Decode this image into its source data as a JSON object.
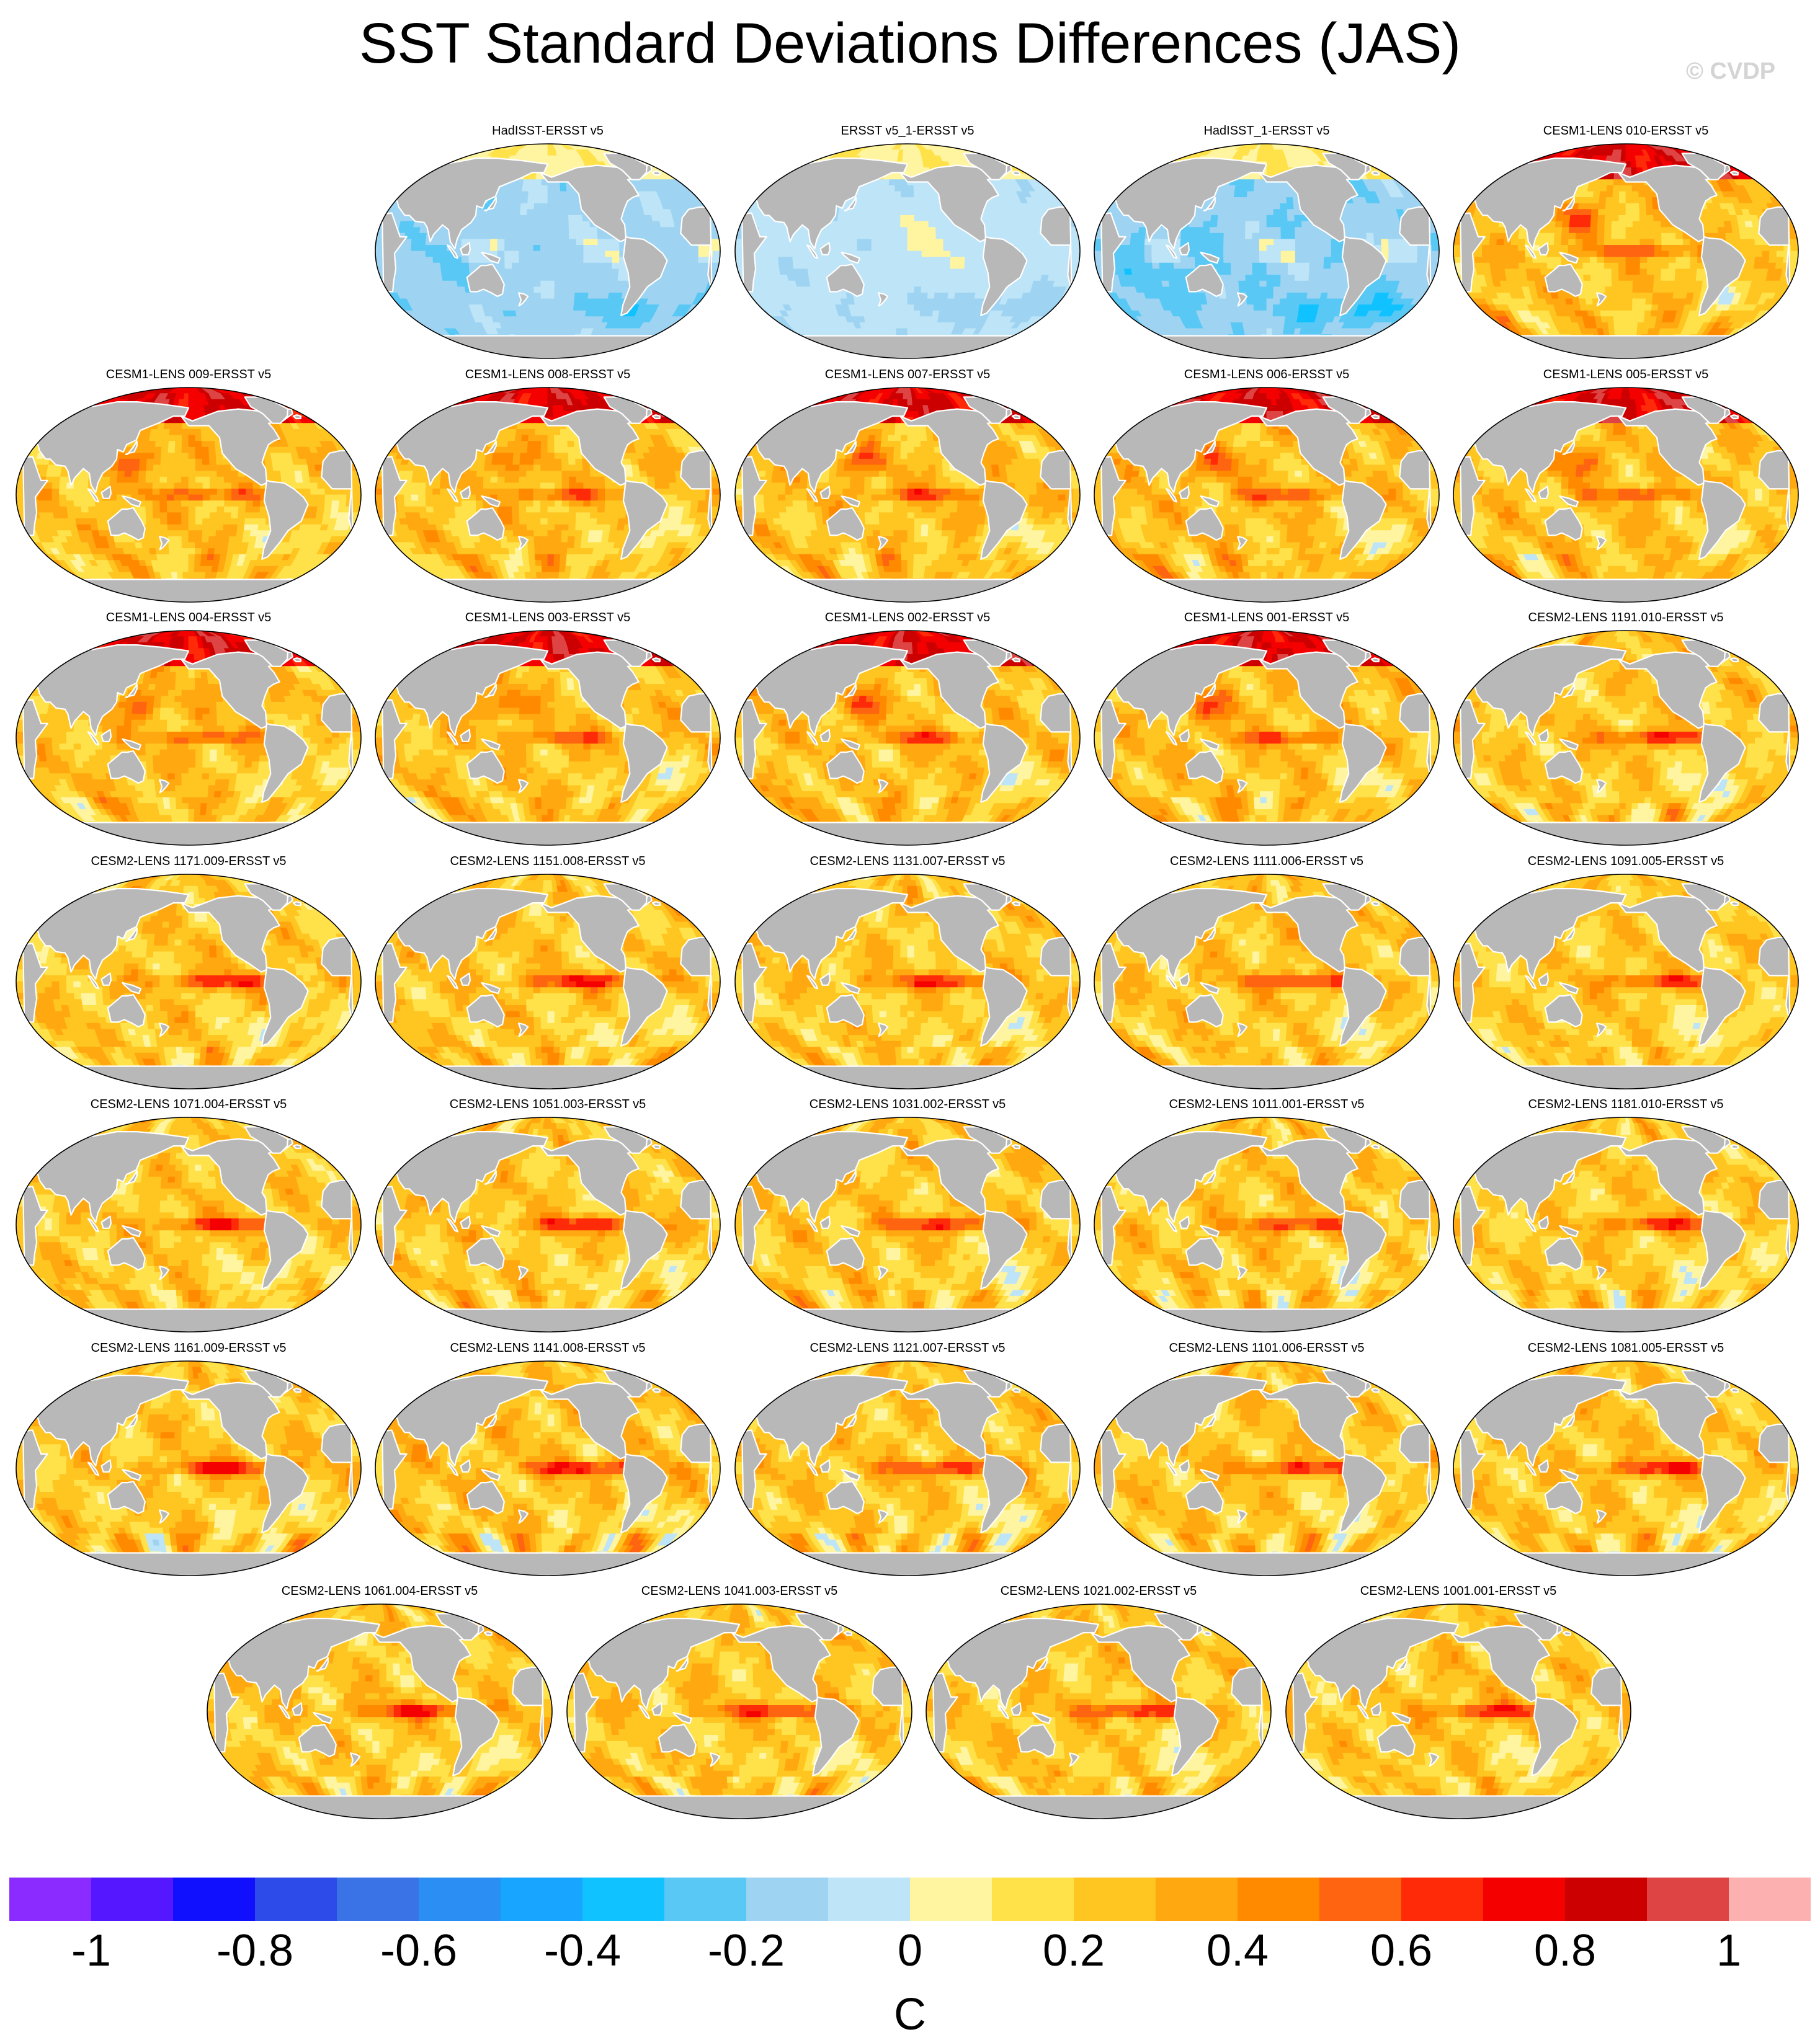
{
  "title": "SST Standard Deviations Differences (JAS)",
  "watermark": "© CVDP",
  "colorbar": {
    "unit": "C",
    "tick_labels": [
      "-1",
      "-0.8",
      "-0.6",
      "-0.4",
      "-0.2",
      "0",
      "0.2",
      "0.4",
      "0.6",
      "0.8",
      "1"
    ],
    "tick_values": [
      -1,
      -0.8,
      -0.6,
      -0.4,
      -0.2,
      0,
      0.2,
      0.4,
      0.6,
      0.8,
      1
    ],
    "min": -1.1,
    "max": 1.1,
    "step": 0.1,
    "colors": [
      "#8b2bff",
      "#5517ff",
      "#1010ff",
      "#2c4be8",
      "#3a73e6",
      "#2a8ef2",
      "#17a5ff",
      "#10c2ff",
      "#5ac8f5",
      "#9ed4f2",
      "#bee4f7",
      "#fff5a0",
      "#ffe14a",
      "#ffc520",
      "#ffa810",
      "#ff8a00",
      "#ff6410",
      "#ff2a08",
      "#f50000",
      "#cc0000",
      "#de4444",
      "#fcb0b0"
    ]
  },
  "chart_data": {
    "type": "heatmap",
    "title": "SST Standard Deviations Differences (JAS)",
    "colorbar_label": "C",
    "colorbar_range": [
      -1.1,
      1.1
    ],
    "panels": [
      {
        "title": "HadISST-ERSST v5",
        "style": "neg",
        "amp": 0.65
      },
      {
        "title": "ERSST v5_1-ERSST v5",
        "style": "neg2",
        "amp": 0.55
      },
      {
        "title": "HadISST_1-ERSST v5",
        "style": "neg",
        "amp": 0.8
      },
      {
        "title": "CESM1-LENS 010-ERSST v5",
        "style": "cesm1",
        "amp": 1.0
      },
      {
        "title": "CESM1-LENS 009-ERSST v5",
        "style": "cesm1",
        "amp": 1.0
      },
      {
        "title": "CESM1-LENS 008-ERSST v5",
        "style": "cesm1",
        "amp": 1.0
      },
      {
        "title": "CESM1-LENS 007-ERSST v5",
        "style": "cesm1",
        "amp": 1.0
      },
      {
        "title": "CESM1-LENS 006-ERSST v5",
        "style": "cesm1",
        "amp": 1.0
      },
      {
        "title": "CESM1-LENS 005-ERSST v5",
        "style": "cesm1",
        "amp": 1.0
      },
      {
        "title": "CESM1-LENS 004-ERSST v5",
        "style": "cesm1",
        "amp": 1.0
      },
      {
        "title": "CESM1-LENS 003-ERSST v5",
        "style": "cesm1",
        "amp": 1.0
      },
      {
        "title": "CESM1-LENS 002-ERSST v5",
        "style": "cesm1",
        "amp": 1.0
      },
      {
        "title": "CESM1-LENS 001-ERSST v5",
        "style": "cesm1",
        "amp": 1.0
      },
      {
        "title": "CESM2-LENS 1191.010-ERSST v5",
        "style": "cesm2",
        "amp": 1.0
      },
      {
        "title": "CESM2-LENS 1171.009-ERSST v5",
        "style": "cesm2",
        "amp": 1.0
      },
      {
        "title": "CESM2-LENS 1151.008-ERSST v5",
        "style": "cesm2",
        "amp": 1.0
      },
      {
        "title": "CESM2-LENS 1131.007-ERSST v5",
        "style": "cesm2",
        "amp": 1.0
      },
      {
        "title": "CESM2-LENS 1111.006-ERSST v5",
        "style": "cesm2",
        "amp": 1.0
      },
      {
        "title": "CESM2-LENS 1091.005-ERSST v5",
        "style": "cesm2",
        "amp": 0.95
      },
      {
        "title": "CESM2-LENS 1071.004-ERSST v5",
        "style": "cesm2",
        "amp": 1.0
      },
      {
        "title": "CESM2-LENS 1051.003-ERSST v5",
        "style": "cesm2",
        "amp": 1.0
      },
      {
        "title": "CESM2-LENS 1031.002-ERSST v5",
        "style": "cesm2",
        "amp": 1.0
      },
      {
        "title": "CESM2-LENS 1011.001-ERSST v5",
        "style": "cesm2",
        "amp": 1.0
      },
      {
        "title": "CESM2-LENS 1181.010-ERSST v5",
        "style": "cesm2",
        "amp": 0.95
      },
      {
        "title": "CESM2-LENS 1161.009-ERSST v5",
        "style": "cesm2",
        "amp": 1.0
      },
      {
        "title": "CESM2-LENS 1141.008-ERSST v5",
        "style": "cesm2",
        "amp": 1.05
      },
      {
        "title": "CESM2-LENS 1121.007-ERSST v5",
        "style": "cesm2",
        "amp": 1.0
      },
      {
        "title": "CESM2-LENS 1101.006-ERSST v5",
        "style": "cesm2",
        "amp": 1.0
      },
      {
        "title": "CESM2-LENS 1081.005-ERSST v5",
        "style": "cesm2",
        "amp": 1.0
      },
      {
        "title": "CESM2-LENS 1061.004-ERSST v5",
        "style": "cesm2",
        "amp": 1.0
      },
      {
        "title": "CESM2-LENS 1041.003-ERSST v5",
        "style": "cesm2",
        "amp": 1.0
      },
      {
        "title": "CESM2-LENS 1021.002-ERSST v5",
        "style": "cesm2",
        "amp": 1.0
      },
      {
        "title": "CESM2-LENS 1001.001-ERSST v5",
        "style": "cesm2",
        "amp": 1.0
      }
    ]
  }
}
